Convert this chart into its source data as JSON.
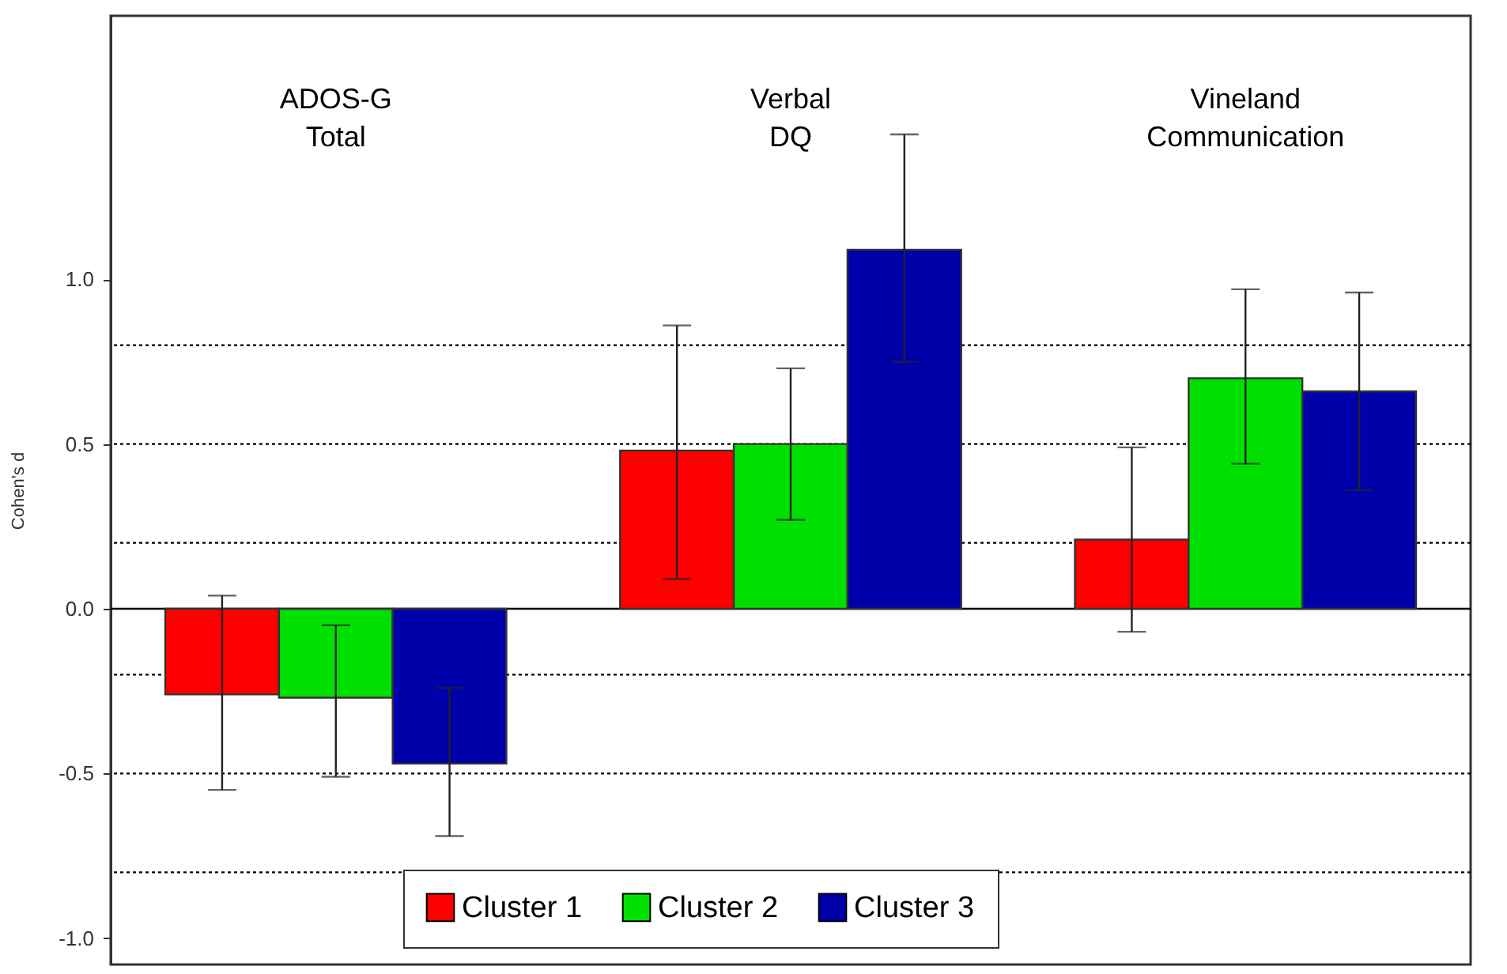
{
  "chart_data": {
    "type": "bar",
    "ylabel": "Cohen's d",
    "categories": [
      "ADOS-G Total",
      "Verbal DQ",
      "Vineland Communication"
    ],
    "series": [
      {
        "name": "Cluster 1",
        "color": "#ff0000",
        "values": [
          -0.26,
          0.48,
          0.21
        ],
        "errors": [
          [
            -0.55,
            0.04
          ],
          [
            0.09,
            0.86
          ],
          [
            -0.07,
            0.49
          ]
        ]
      },
      {
        "name": "Cluster 2",
        "color": "#00e000",
        "values": [
          -0.27,
          0.5,
          0.7
        ],
        "errors": [
          [
            -0.51,
            -0.05
          ],
          [
            0.27,
            0.73
          ],
          [
            0.44,
            0.97
          ]
        ]
      },
      {
        "name": "Cluster 3",
        "color": "#0000aa",
        "values": [
          -0.47,
          1.09,
          0.66
        ],
        "errors": [
          [
            -0.69,
            -0.24
          ],
          [
            0.75,
            1.44
          ],
          [
            0.36,
            0.96
          ]
        ]
      }
    ],
    "ylim": [
      -1.08,
      1.8
    ],
    "yticks": [
      {
        "value": -1,
        "label": "-1.0"
      },
      {
        "value": -0.5,
        "label": "-0.5"
      },
      {
        "value": 0,
        "label": "0.0"
      },
      {
        "value": 0.5,
        "label": "0.5"
      },
      {
        "value": 1,
        "label": "1.0"
      }
    ],
    "ref_lines": [
      {
        "axis": "y",
        "value": 0.8,
        "line_style": "dotted"
      },
      {
        "axis": "y",
        "value": 0.5,
        "line_style": "dotted"
      },
      {
        "axis": "y",
        "value": 0.2,
        "line_style": "dotted"
      },
      {
        "axis": "y",
        "value": 0,
        "line_style": "solid"
      },
      {
        "axis": "y",
        "value": -0.2,
        "line_style": "dotted"
      },
      {
        "axis": "y",
        "value": -0.5,
        "line_style": "dotted"
      },
      {
        "axis": "y",
        "value": -0.8,
        "line_style": "dotted"
      }
    ],
    "grid": false,
    "legend": "bottom"
  }
}
